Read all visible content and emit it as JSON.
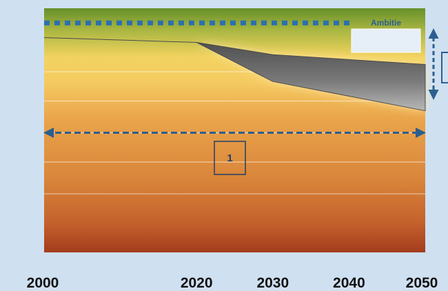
{
  "chart_data": {
    "type": "area",
    "title": "",
    "xlabel": "",
    "ylabel": "",
    "x_ticks": [
      2000,
      2020,
      2030,
      2040,
      2050
    ],
    "tick_labels": [
      "2000",
      "2020",
      "2030",
      "2040",
      "2050"
    ],
    "series": [
      {
        "x": [
          2000,
          2020,
          2030,
          2050
        ],
        "upper": [
          0.88,
          0.86,
          0.81,
          0.77
        ],
        "lower": [
          0.88,
          0.86,
          0.7,
          0.58
        ]
      }
    ],
    "ambition_level": 0.94,
    "ambition_label": "Ambitie",
    "gap_marker_label": "1",
    "colors": {
      "band_top": "#6b8f2c",
      "band_yellow": "#f5cf62",
      "band_orange": "#e0913e",
      "band_bottom": "#a8401f",
      "wedge": "#5a5a5a",
      "arrow": "#2c5e8f",
      "background": "#cfe0f1"
    }
  }
}
